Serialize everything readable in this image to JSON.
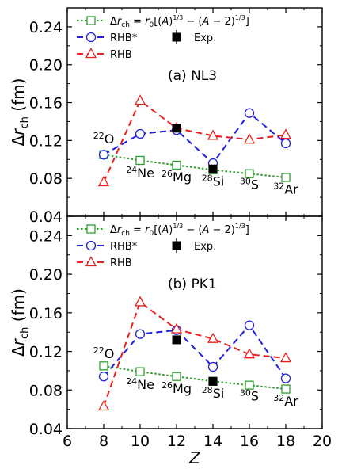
{
  "chart_data": [
    {
      "type": "line",
      "panel_label": "(a) NL3",
      "x": [
        8,
        10,
        12,
        14,
        16,
        18
      ],
      "xlim": [
        6,
        20
      ],
      "ylim": [
        0.04,
        0.26
      ],
      "xticks": [
        "6",
        "8",
        "10",
        "12",
        "14",
        "16",
        "18",
        "20"
      ],
      "yticks": [
        "0.04",
        "0.08",
        "0.12",
        "0.16",
        "0.20",
        "0.24"
      ],
      "ylabel": "Δr_ch (fm)",
      "legend": [
        {
          "label": "Δr_ch = r0[(A)^(1/3) − (A−2)^(1/3)]",
          "series": "formula"
        },
        {
          "label": "RHB*",
          "series": "rhb_star"
        },
        {
          "label": "RHB",
          "series": "rhb"
        },
        {
          "label": "Exp.",
          "series": "exp"
        }
      ],
      "series": [
        {
          "key": "formula",
          "color": "#2ca02c",
          "marker": "square",
          "values": [
            0.105,
            0.099,
            0.094,
            0.089,
            0.085,
            0.081
          ]
        },
        {
          "key": "rhb_star",
          "color": "#1f1fdd",
          "marker": "circle",
          "values": [
            0.105,
            0.127,
            0.131,
            0.096,
            0.149,
            0.117
          ]
        },
        {
          "key": "rhb",
          "color": "#e8201c",
          "marker": "triangle",
          "values": [
            0.076,
            0.162,
            0.133,
            0.125,
            0.121,
            0.126
          ]
        },
        {
          "key": "exp",
          "color": "#000000",
          "marker": "filled-square",
          "x": [
            12,
            14
          ],
          "values": [
            0.133,
            0.09
          ]
        }
      ],
      "nuclei": [
        {
          "mass": "22",
          "sym": "O",
          "x": 8,
          "y": 0.117
        },
        {
          "mass": "24",
          "sym": "Ne",
          "x": 10,
          "y": 0.081
        },
        {
          "mass": "26",
          "sym": "Mg",
          "x": 12,
          "y": 0.077
        },
        {
          "mass": "28",
          "sym": "Si",
          "x": 14,
          "y": 0.072
        },
        {
          "mass": "30",
          "sym": "S",
          "x": 16,
          "y": 0.069
        },
        {
          "mass": "32",
          "sym": "Ar",
          "x": 18,
          "y": 0.064
        }
      ]
    },
    {
      "type": "line",
      "panel_label": "(b) PK1",
      "x": [
        8,
        10,
        12,
        14,
        16,
        18
      ],
      "xlim": [
        6,
        20
      ],
      "ylim": [
        0.04,
        0.26
      ],
      "xticks": [
        "6",
        "8",
        "10",
        "12",
        "14",
        "16",
        "18",
        "20"
      ],
      "yticks": [
        "0.04",
        "0.08",
        "0.12",
        "0.16",
        "0.20",
        "0.24"
      ],
      "xlabel": "Z",
      "ylabel": "Δr_ch (fm)",
      "legend": [
        {
          "label": "Δr_ch = r0[(A)^(1/3) − (A−2)^(1/3)]",
          "series": "formula"
        },
        {
          "label": "RHB*",
          "series": "rhb_star"
        },
        {
          "label": "RHB",
          "series": "rhb"
        },
        {
          "label": "Exp.",
          "series": "exp"
        }
      ],
      "series": [
        {
          "key": "formula",
          "color": "#2ca02c",
          "marker": "square",
          "values": [
            0.105,
            0.099,
            0.094,
            0.089,
            0.085,
            0.081
          ]
        },
        {
          "key": "rhb_star",
          "color": "#1f1fdd",
          "marker": "circle",
          "values": [
            0.094,
            0.138,
            0.142,
            0.104,
            0.147,
            0.092
          ]
        },
        {
          "key": "rhb",
          "color": "#e8201c",
          "marker": "triangle",
          "values": [
            0.063,
            0.171,
            0.143,
            0.133,
            0.117,
            0.113
          ]
        },
        {
          "key": "exp",
          "color": "#000000",
          "marker": "filled-square",
          "x": [
            12,
            14
          ],
          "values": [
            0.132,
            0.089
          ]
        }
      ],
      "nuclei": [
        {
          "mass": "22",
          "sym": "O",
          "x": 8,
          "y": 0.113
        },
        {
          "mass": "24",
          "sym": "Ne",
          "x": 10,
          "y": 0.081
        },
        {
          "mass": "26",
          "sym": "Mg",
          "x": 12,
          "y": 0.077
        },
        {
          "mass": "28",
          "sym": "Si",
          "x": 14,
          "y": 0.072
        },
        {
          "mass": "30",
          "sym": "S",
          "x": 16,
          "y": 0.069
        },
        {
          "mass": "32",
          "sym": "Ar",
          "x": 18,
          "y": 0.064
        }
      ]
    }
  ]
}
